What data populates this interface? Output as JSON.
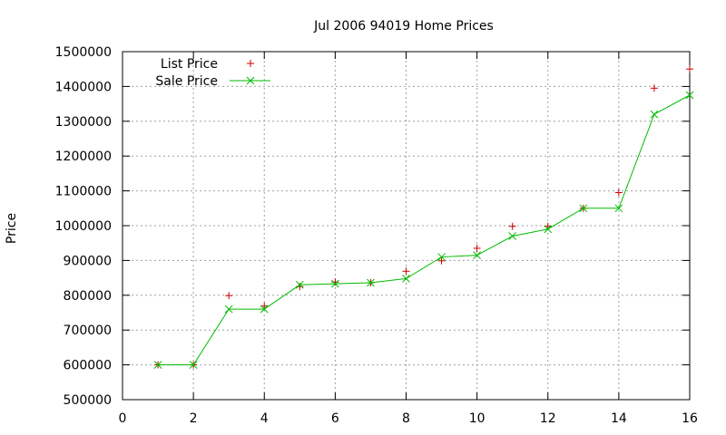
{
  "chart_data": {
    "type": "line",
    "title": "Jul 2006 94019 Home Prices",
    "xlabel": "",
    "ylabel": "Price",
    "xlim": [
      0,
      16
    ],
    "ylim": [
      500000,
      1500000
    ],
    "xticks": [
      0,
      2,
      4,
      6,
      8,
      10,
      12,
      14,
      16
    ],
    "yticks": [
      500000,
      600000,
      700000,
      800000,
      900000,
      1000000,
      1100000,
      1200000,
      1300000,
      1400000,
      1500000
    ],
    "grid": true,
    "legend_position": "top-left",
    "x": [
      1,
      2,
      3,
      4,
      5,
      6,
      7,
      8,
      9,
      10,
      11,
      12,
      13,
      14,
      15,
      16
    ],
    "series": [
      {
        "name": "List Price",
        "style": "points",
        "marker": "plus",
        "color": "#cc0000",
        "values": [
          600000,
          600000,
          799000,
          769000,
          825000,
          838000,
          836000,
          869000,
          899000,
          935000,
          998000,
          998000,
          1050000,
          1095000,
          1395000,
          1450000
        ]
      },
      {
        "name": "Sale Price",
        "style": "linespoints",
        "marker": "cross",
        "color": "#00bb00",
        "values": [
          600000,
          600000,
          760000,
          760000,
          830000,
          833000,
          836000,
          848000,
          910000,
          915000,
          970000,
          990000,
          1050000,
          1050000,
          1320000,
          1375000
        ]
      }
    ]
  }
}
